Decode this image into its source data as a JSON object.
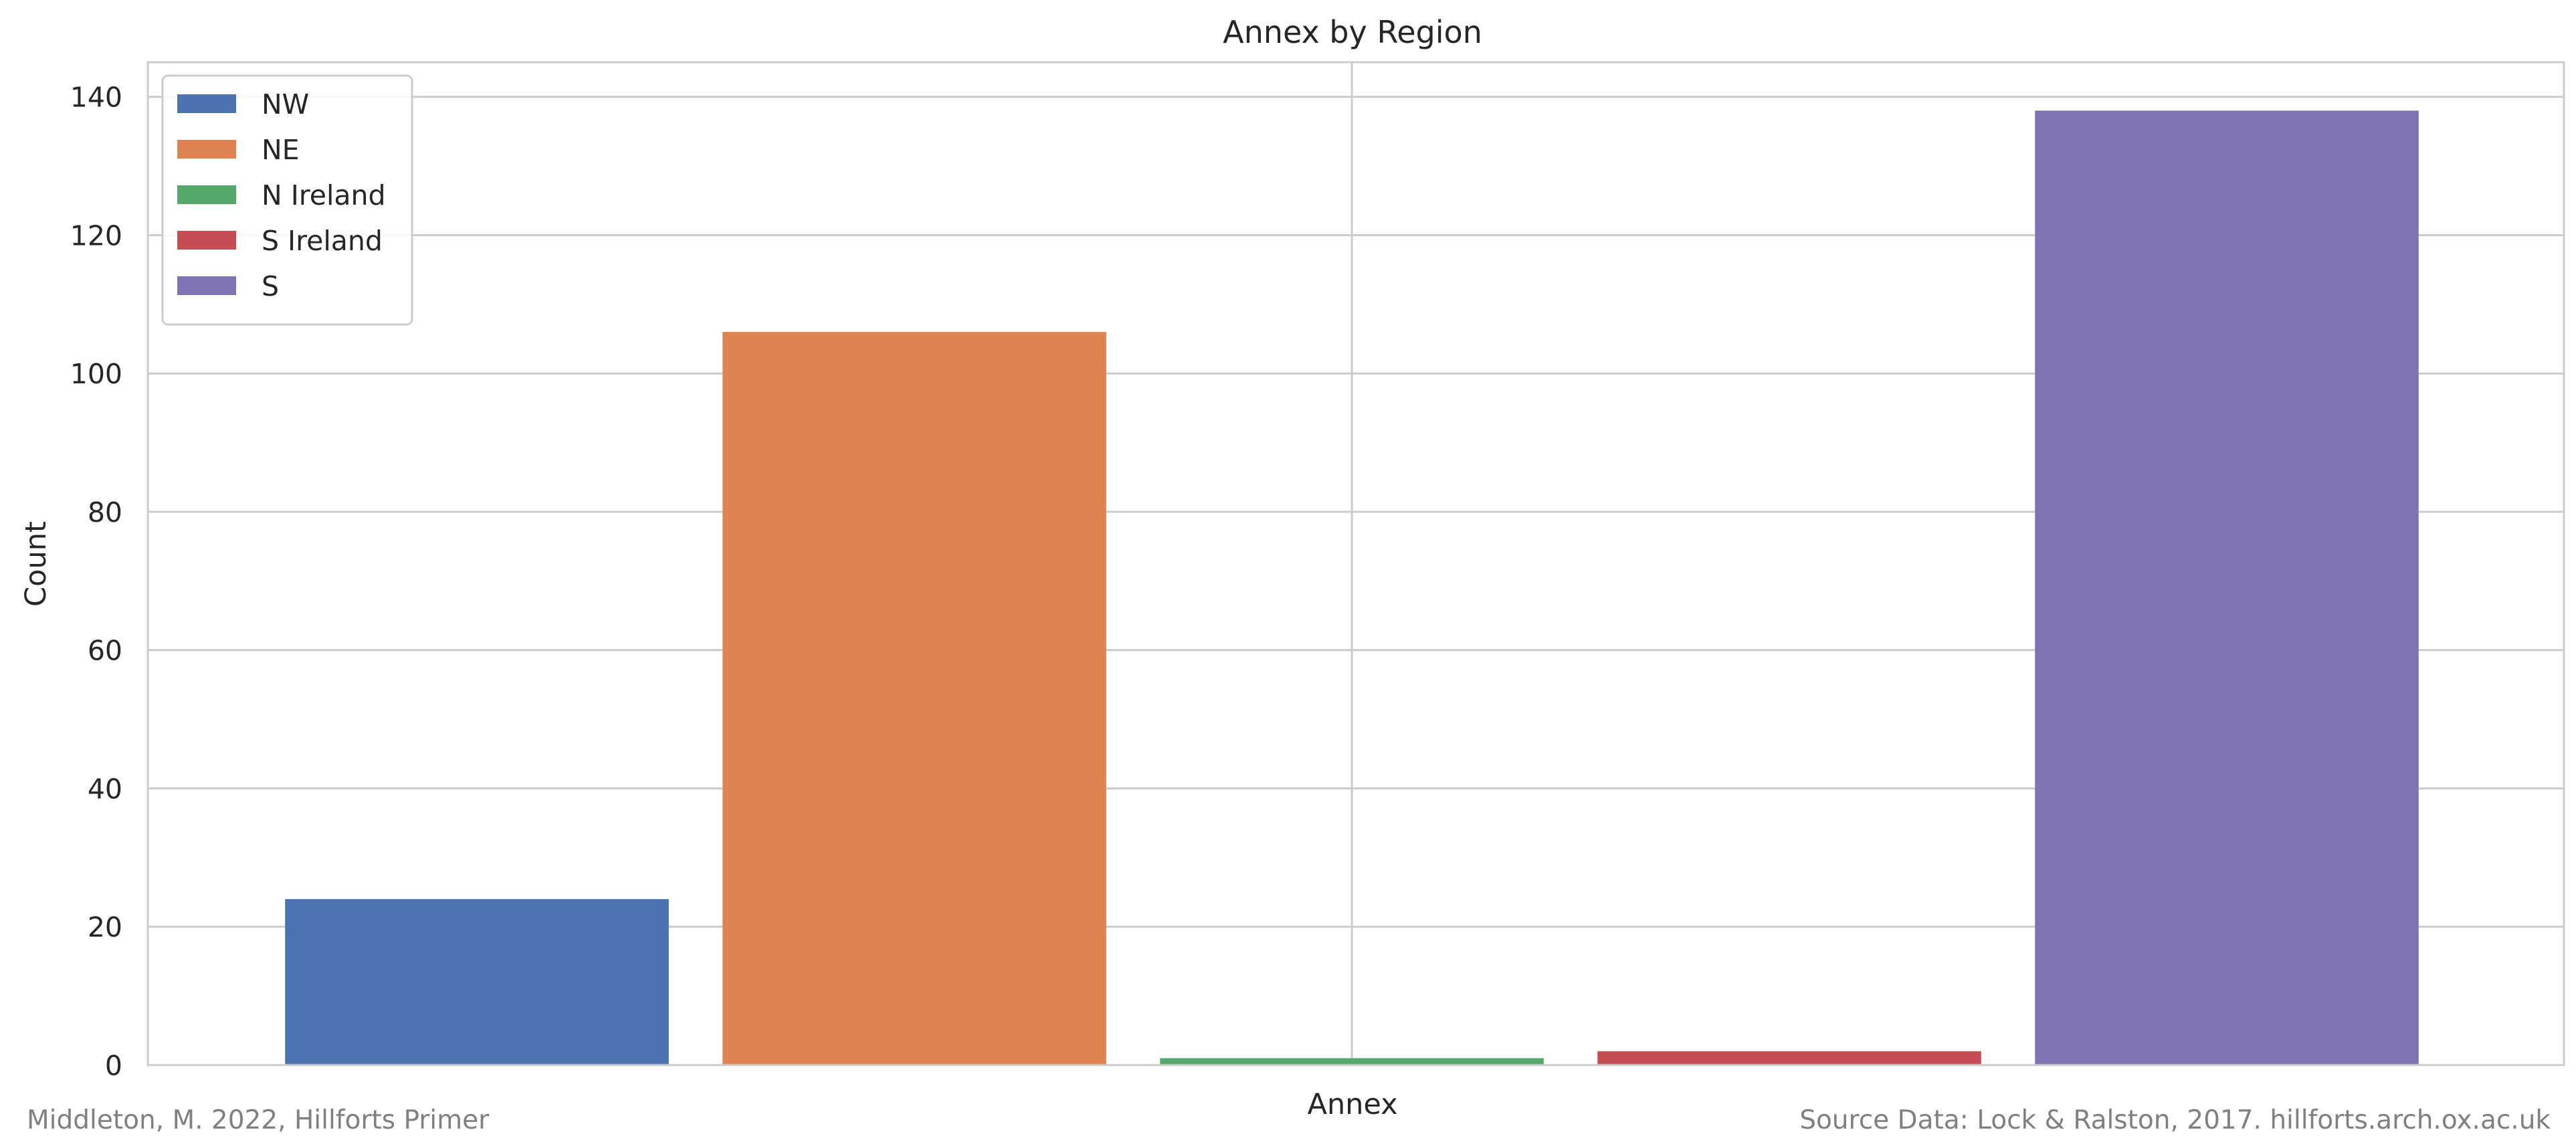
{
  "chart_data": {
    "type": "bar",
    "title": "Annex by Region",
    "xlabel": "Annex",
    "ylabel": "Count",
    "ylim": [
      0,
      145
    ],
    "yticks": [
      0,
      20,
      40,
      60,
      80,
      100,
      120,
      140
    ],
    "grid": true,
    "legend_position": "top-left",
    "series": [
      {
        "name": "NW",
        "value": 24,
        "color": "#4c72b0"
      },
      {
        "name": "NE",
        "value": 106,
        "color": "#dd8452"
      },
      {
        "name": "N Ireland",
        "value": 1,
        "color": "#55a868"
      },
      {
        "name": "S Ireland",
        "value": 2,
        "color": "#c44e52"
      },
      {
        "name": "S",
        "value": 138,
        "color": "#8172b3"
      }
    ]
  },
  "footer": {
    "left": "Middleton, M. 2022, Hillforts Primer",
    "right": "Source Data: Lock & Ralston, 2017. hillforts.arch.ox.ac.uk"
  }
}
